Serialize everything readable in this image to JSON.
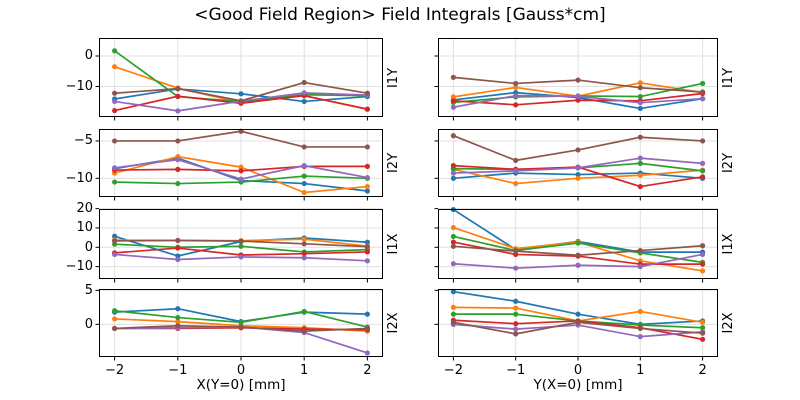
{
  "title": "<Good Field Region> Field Integrals [Gauss*cm]",
  "axes": {
    "x_values": [
      -2,
      -1,
      0,
      1,
      2
    ],
    "x_tick_labels": [
      "−2",
      "−1",
      "0",
      "1",
      "2"
    ],
    "xlabel_left": "X(Y=0) [mm]",
    "xlabel_right": "Y(X=0) [mm]",
    "grid": true,
    "legend": "none"
  },
  "colors": {
    "C0": "#1f77b4",
    "C1": "#ff7f0e",
    "C2": "#2ca02c",
    "C3": "#d62728",
    "C4": "#9467bd",
    "C5": "#8c564b",
    "grid": "#e0e0e0",
    "spine": "#000000"
  },
  "chart_data": [
    {
      "type": "line",
      "row_label": "I1Y",
      "col": "left",
      "x": [
        -2,
        -1,
        0,
        1,
        2
      ],
      "ylim": [
        5.9,
        -20.0
      ],
      "yticks": [
        {
          "v": 0,
          "label": "0"
        },
        {
          "v": -10,
          "label": "−10"
        }
      ],
      "series": [
        {
          "name": "C0-blue",
          "color": "#1f77b4",
          "values": [
            -14.1,
            -10.8,
            -12.4,
            -14.9,
            -13.3
          ]
        },
        {
          "name": "C1-orange",
          "color": "#ff7f0e",
          "values": [
            -3.5,
            -10.5,
            -15.3,
            -13.0,
            -17.5
          ]
        },
        {
          "name": "C2-green",
          "color": "#2ca02c",
          "values": [
            1.7,
            -13.3,
            -15.0,
            -12.7,
            -13.0
          ]
        },
        {
          "name": "C3-red",
          "color": "#d62728",
          "values": [
            -17.9,
            -13.2,
            -15.5,
            -13.0,
            -17.4
          ]
        },
        {
          "name": "C4-purple",
          "color": "#9467bd",
          "values": [
            -14.9,
            -18.0,
            -14.8,
            -12.1,
            -12.8
          ]
        },
        {
          "name": "C5-brown",
          "color": "#8c564b",
          "values": [
            -12.2,
            -10.7,
            -14.7,
            -8.7,
            -12.2
          ]
        }
      ]
    },
    {
      "type": "line",
      "row_label": "I1Y",
      "col": "right",
      "x": [
        -2,
        -1,
        0,
        1,
        2
      ],
      "ylim": [
        5.9,
        -20.0
      ],
      "yticks": [
        {
          "v": 0,
          "label": "0"
        },
        {
          "v": -10,
          "label": "−10"
        }
      ],
      "series": [
        {
          "name": "C0-blue",
          "color": "#1f77b4",
          "values": [
            -14.4,
            -12.0,
            -13.6,
            -17.2,
            -14.0
          ]
        },
        {
          "name": "C1-orange",
          "color": "#ff7f0e",
          "values": [
            -13.4,
            -10.3,
            -13.2,
            -8.8,
            -12.0
          ]
        },
        {
          "name": "C2-green",
          "color": "#2ca02c",
          "values": [
            -15.2,
            -13.4,
            -13.1,
            -13.3,
            -9.0
          ]
        },
        {
          "name": "C3-red",
          "color": "#d62728",
          "values": [
            -14.7,
            -16.0,
            -14.5,
            -14.7,
            -12.3
          ]
        },
        {
          "name": "C4-purple",
          "color": "#9467bd",
          "values": [
            -16.8,
            -13.0,
            -13.2,
            -15.3,
            -14.0
          ]
        },
        {
          "name": "C5-brown",
          "color": "#8c564b",
          "values": [
            -7.0,
            -9.0,
            -7.9,
            -10.4,
            -11.8
          ]
        }
      ]
    },
    {
      "type": "line",
      "row_label": "I2Y",
      "col": "left",
      "x": [
        -2,
        -1,
        0,
        1,
        2
      ],
      "ylim": [
        -3.4,
        -12.5
      ],
      "yticks": [
        {
          "v": -5,
          "label": "−5"
        },
        {
          "v": -10,
          "label": "−10"
        }
      ],
      "series": [
        {
          "name": "C0-blue",
          "color": "#1f77b4",
          "values": [
            -8.7,
            -7.3,
            -10.3,
            -10.7,
            -11.7
          ]
        },
        {
          "name": "C1-orange",
          "color": "#ff7f0e",
          "values": [
            -9.3,
            -7.1,
            -8.5,
            -11.9,
            -11.1
          ]
        },
        {
          "name": "C2-green",
          "color": "#2ca02c",
          "values": [
            -10.5,
            -10.7,
            -10.5,
            -9.7,
            -10.0
          ]
        },
        {
          "name": "C3-red",
          "color": "#d62728",
          "values": [
            -8.9,
            -8.8,
            -9.0,
            -8.4,
            -8.4
          ]
        },
        {
          "name": "C4-purple",
          "color": "#9467bd",
          "values": [
            -8.6,
            -7.5,
            -10.1,
            -8.3,
            -9.9
          ]
        },
        {
          "name": "C5-brown",
          "color": "#8c564b",
          "values": [
            -5.0,
            -5.0,
            -3.7,
            -5.8,
            -5.8
          ]
        }
      ]
    },
    {
      "type": "line",
      "row_label": "I2Y",
      "col": "right",
      "x": [
        -2,
        -1,
        0,
        1,
        2
      ],
      "ylim": [
        -3.4,
        -12.5
      ],
      "yticks": [
        {
          "v": -5,
          "label": "−5"
        },
        {
          "v": -10,
          "label": "−10"
        }
      ],
      "series": [
        {
          "name": "C0-blue",
          "color": "#1f77b4",
          "values": [
            -10.0,
            -9.3,
            -9.5,
            -9.3,
            -10.0
          ]
        },
        {
          "name": "C1-orange",
          "color": "#ff7f0e",
          "values": [
            -8.8,
            -10.7,
            -10.0,
            -9.6,
            -8.9
          ]
        },
        {
          "name": "C2-green",
          "color": "#2ca02c",
          "values": [
            -8.7,
            -8.8,
            -8.6,
            -8.0,
            -9.0
          ]
        },
        {
          "name": "C3-red",
          "color": "#d62728",
          "values": [
            -8.3,
            -8.8,
            -8.5,
            -11.1,
            -9.8
          ]
        },
        {
          "name": "C4-purple",
          "color": "#9467bd",
          "values": [
            -9.3,
            -9.0,
            -8.6,
            -7.3,
            -8.0
          ]
        },
        {
          "name": "C5-brown",
          "color": "#8c564b",
          "values": [
            -4.3,
            -7.6,
            -6.2,
            -4.5,
            -5.0
          ]
        }
      ]
    },
    {
      "type": "line",
      "row_label": "I1X",
      "col": "left",
      "x": [
        -2,
        -1,
        0,
        1,
        2
      ],
      "ylim": [
        19.8,
        -16.4
      ],
      "yticks": [
        {
          "v": 20,
          "label": "20"
        },
        {
          "v": 10,
          "label": "10"
        },
        {
          "v": 0,
          "label": "0"
        },
        {
          "v": -10,
          "label": "−10"
        }
      ],
      "series": [
        {
          "name": "C0-blue",
          "color": "#1f77b4",
          "values": [
            5.7,
            -4.5,
            3.0,
            4.8,
            2.6
          ]
        },
        {
          "name": "C1-orange",
          "color": "#ff7f0e",
          "values": [
            3.7,
            3.6,
            3.4,
            4.2,
            0.6
          ]
        },
        {
          "name": "C2-green",
          "color": "#2ca02c",
          "values": [
            1.6,
            0.0,
            0.5,
            -2.4,
            -1.2
          ]
        },
        {
          "name": "C3-red",
          "color": "#d62728",
          "values": [
            -2.9,
            -0.4,
            -4.0,
            -3.3,
            -2.4
          ]
        },
        {
          "name": "C4-purple",
          "color": "#9467bd",
          "values": [
            -3.7,
            -6.3,
            -5.0,
            -5.4,
            -7.0
          ]
        },
        {
          "name": "C5-brown",
          "color": "#8c564b",
          "values": [
            3.3,
            3.5,
            3.2,
            1.8,
            0.3
          ]
        }
      ]
    },
    {
      "type": "line",
      "row_label": "I1X",
      "col": "right",
      "x": [
        -2,
        -1,
        0,
        1,
        2
      ],
      "ylim": [
        19.8,
        -16.4
      ],
      "yticks": [
        {
          "v": 20,
          "label": "20"
        },
        {
          "v": 10,
          "label": "10"
        },
        {
          "v": 0,
          "label": "0"
        },
        {
          "v": -10,
          "label": "−10"
        }
      ],
      "series": [
        {
          "name": "C0-blue",
          "color": "#1f77b4",
          "values": [
            19.5,
            -1.2,
            3.0,
            -2.5,
            -2.5
          ]
        },
        {
          "name": "C1-orange",
          "color": "#ff7f0e",
          "values": [
            10.2,
            -0.7,
            2.7,
            -7.0,
            -12.2
          ]
        },
        {
          "name": "C2-green",
          "color": "#2ca02c",
          "values": [
            5.6,
            -1.7,
            2.2,
            -2.9,
            -7.8
          ]
        },
        {
          "name": "C3-red",
          "color": "#d62728",
          "values": [
            2.7,
            -3.7,
            -4.6,
            -8.7,
            -8.7
          ]
        },
        {
          "name": "C4-purple",
          "color": "#9467bd",
          "values": [
            -8.5,
            -10.8,
            -9.3,
            -10.0,
            -3.7
          ]
        },
        {
          "name": "C5-brown",
          "color": "#8c564b",
          "values": [
            0.5,
            -2.0,
            -4.1,
            -1.7,
            0.8
          ]
        }
      ]
    },
    {
      "type": "line",
      "row_label": "I2X",
      "col": "left",
      "x": [
        -2,
        -1,
        0,
        1,
        2
      ],
      "ylim": [
        5.2,
        -4.8
      ],
      "yticks": [
        {
          "v": 5,
          "label": "5"
        },
        {
          "v": 0,
          "label": "0"
        }
      ],
      "series": [
        {
          "name": "C0-blue",
          "color": "#1f77b4",
          "values": [
            1.8,
            2.3,
            0.4,
            1.8,
            1.5
          ]
        },
        {
          "name": "C1-orange",
          "color": "#ff7f0e",
          "values": [
            0.8,
            0.4,
            -0.2,
            -0.5,
            -1.0
          ]
        },
        {
          "name": "C2-green",
          "color": "#2ca02c",
          "values": [
            2.0,
            1.0,
            0.3,
            1.9,
            -0.4
          ]
        },
        {
          "name": "C3-red",
          "color": "#d62728",
          "values": [
            -0.6,
            -0.6,
            -0.5,
            -0.7,
            -0.8
          ]
        },
        {
          "name": "C4-purple",
          "color": "#9467bd",
          "values": [
            -0.6,
            -0.5,
            -0.4,
            -1.2,
            -4.2
          ]
        },
        {
          "name": "C5-brown",
          "color": "#8c564b",
          "values": [
            -0.6,
            -0.2,
            -0.4,
            -1.0,
            -0.6
          ]
        }
      ]
    },
    {
      "type": "line",
      "row_label": "I2X",
      "col": "right",
      "x": [
        -2,
        -1,
        0,
        1,
        2
      ],
      "ylim": [
        5.2,
        -4.8
      ],
      "yticks": [
        {
          "v": 5,
          "label": "5"
        },
        {
          "v": 0,
          "label": "0"
        }
      ],
      "series": [
        {
          "name": "C0-blue",
          "color": "#1f77b4",
          "values": [
            4.8,
            3.4,
            1.5,
            0.0,
            0.5
          ]
        },
        {
          "name": "C1-orange",
          "color": "#ff7f0e",
          "values": [
            2.5,
            2.4,
            0.5,
            1.9,
            0.3
          ]
        },
        {
          "name": "C2-green",
          "color": "#2ca02c",
          "values": [
            1.5,
            1.5,
            0.5,
            -0.1,
            -0.5
          ]
        },
        {
          "name": "C3-red",
          "color": "#d62728",
          "values": [
            0.6,
            0.1,
            0.5,
            -0.5,
            -2.2
          ]
        },
        {
          "name": "C4-purple",
          "color": "#9467bd",
          "values": [
            0.0,
            -0.7,
            -0.1,
            -1.8,
            -1.1
          ]
        },
        {
          "name": "C5-brown",
          "color": "#8c564b",
          "values": [
            0.3,
            -1.4,
            0.3,
            -0.6,
            -1.3
          ]
        }
      ]
    }
  ]
}
